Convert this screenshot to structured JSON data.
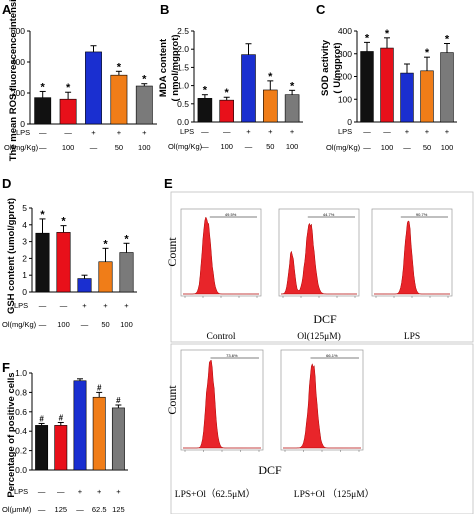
{
  "palette": {
    "black": "#111111",
    "red": "#e8101a",
    "blue": "#1a2fd0",
    "orange": "#f07d18",
    "gray": "#7a7a7a",
    "flow": "#e8252a"
  },
  "panels": {
    "A": {
      "letter": "A",
      "ylabel": "The mean ROS fluorescence intensity",
      "ylim": [
        0,
        600
      ],
      "ticks": [
        "0",
        "200",
        "400",
        "600"
      ]
    },
    "B": {
      "letter": "B",
      "ylabel": "MDA content",
      "ylabel2": "( nmol/mgprot)",
      "ylim": [
        0,
        2.5
      ],
      "ticks": [
        "0.0",
        "0.5",
        "1.0",
        "1.5",
        "2.0",
        "2.5"
      ]
    },
    "C": {
      "letter": "C",
      "ylabel": "SOD activity",
      "ylabel2": "( U/mgprot)",
      "ylim": [
        0,
        400
      ],
      "ticks": [
        "0",
        "100",
        "200",
        "300",
        "400"
      ]
    },
    "D": {
      "letter": "D",
      "ylabel": "GSH content (umol/gprot)",
      "ylim": [
        0,
        5
      ],
      "ticks": [
        "0",
        "1",
        "2",
        "3",
        "4",
        "5"
      ]
    },
    "E": {
      "letter": "E",
      "count_label": "Count",
      "x_label": "DCF"
    },
    "F": {
      "letter": "F",
      "ylabel": "Percentage of positive cells",
      "ylim": [
        0,
        1.0
      ],
      "ticks": [
        "0.0",
        "0.2",
        "0.4",
        "0.6",
        "0.8",
        "1.0"
      ]
    }
  },
  "conditions": {
    "lps_label": "LPS",
    "ol_label_mgkg": "Ol(mg/Kg)",
    "ol_label_um": "Ol(μmM)",
    "lps_row": [
      "—",
      "—",
      "+",
      "+",
      "+"
    ],
    "ol_row_mgkg": [
      "—",
      "100",
      "—",
      "50",
      "100"
    ],
    "ol_row_um": [
      "—",
      "125",
      "—",
      "62.5",
      "125"
    ]
  },
  "flow": {
    "top": [
      {
        "label": "Control",
        "gate": "49.5%"
      },
      {
        "label": "Ol(125μM)",
        "gate": "44.7%"
      },
      {
        "label": "LPS",
        "gate": "90.7%"
      }
    ],
    "bottom": [
      {
        "label": "LPS+Ol（62.5μM）",
        "gate": "73.6%"
      },
      {
        "label": "LPS+Ol （125μM）",
        "gate": "66.1%"
      }
    ]
  },
  "chart_data": [
    {
      "panel": "A",
      "type": "bar",
      "categories": [
        "1",
        "2",
        "3",
        "4",
        "5"
      ],
      "values": [
        170,
        160,
        465,
        315,
        245
      ],
      "errors": [
        40,
        45,
        40,
        25,
        15
      ],
      "marks": [
        "*",
        "*",
        "",
        "*",
        "*"
      ],
      "ylabel": "The mean ROS fluorescence intensity",
      "ylim": [
        0,
        600
      ]
    },
    {
      "panel": "B",
      "type": "bar",
      "categories": [
        "1",
        "2",
        "3",
        "4",
        "5"
      ],
      "values": [
        0.65,
        0.6,
        1.85,
        0.88,
        0.75
      ],
      "errors": [
        0.1,
        0.08,
        0.3,
        0.25,
        0.12
      ],
      "marks": [
        "*",
        "*",
        "",
        "*",
        "*"
      ],
      "ylabel": "MDA content ( nmol/mgprot)",
      "ylim": [
        0,
        2.5
      ]
    },
    {
      "panel": "C",
      "type": "bar",
      "categories": [
        "1",
        "2",
        "3",
        "4",
        "5"
      ],
      "values": [
        310,
        325,
        215,
        225,
        305
      ],
      "errors": [
        40,
        45,
        40,
        60,
        40
      ],
      "marks": [
        "*",
        "*",
        "",
        "*",
        "*"
      ],
      "ylabel": "SOD activity ( U/mgprot)",
      "ylim": [
        0,
        400
      ]
    },
    {
      "panel": "D",
      "type": "bar",
      "categories": [
        "1",
        "2",
        "3",
        "4",
        "5"
      ],
      "values": [
        3.5,
        3.55,
        0.8,
        1.8,
        2.35
      ],
      "errors": [
        0.85,
        0.4,
        0.2,
        0.8,
        0.55
      ],
      "marks": [
        "*",
        "*",
        "",
        "*",
        "*"
      ],
      "ylabel": "GSH content (umol/gprot)",
      "ylim": [
        0,
        5
      ]
    },
    {
      "panel": "F",
      "type": "bar",
      "categories": [
        "1",
        "2",
        "3",
        "4",
        "5"
      ],
      "values": [
        0.46,
        0.46,
        0.92,
        0.75,
        0.64
      ],
      "errors": [
        0.02,
        0.03,
        0.02,
        0.05,
        0.03
      ],
      "marks": [
        "#",
        "#",
        "",
        "#",
        "#"
      ],
      "ylabel": "Percentage of positive cells",
      "ylim": [
        0,
        1.0
      ]
    }
  ]
}
